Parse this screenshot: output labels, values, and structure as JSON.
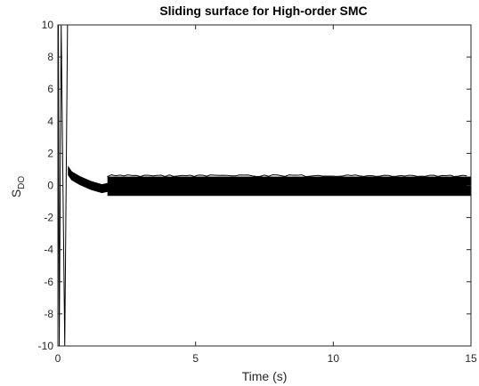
{
  "chart_data": {
    "type": "line",
    "title": "Sliding surface for High-order SMC",
    "xlabel": "Time (s)",
    "ylabel": {
      "main": "S",
      "subscript": "DO"
    },
    "xlim": [
      0,
      15
    ],
    "ylim": [
      -10,
      10
    ],
    "xticks": [
      "0",
      "5",
      "10",
      "15"
    ],
    "yticks": [
      "-10",
      "-8",
      "-6",
      "-4",
      "-2",
      "0",
      "2",
      "4",
      "6",
      "8",
      "10"
    ],
    "grid": false,
    "series": [
      {
        "color": "#000000",
        "initial_spike": {
          "x": [
            0.0,
            0.02,
            0.05,
            0.12,
            0.25,
            0.35
          ],
          "y": [
            -10,
            10,
            -10,
            10,
            -10,
            10
          ]
        },
        "transient": {
          "x": [
            0.38,
            0.5,
            0.8,
            1.2,
            1.6,
            2.0
          ],
          "y": [
            0.9,
            0.6,
            0.3,
            0.0,
            -0.2,
            -0.05
          ]
        },
        "chatter": {
          "x_start": 1.8,
          "x_end": 15.0,
          "y_upper": 0.55,
          "y_lower": -0.65
        }
      }
    ]
  }
}
